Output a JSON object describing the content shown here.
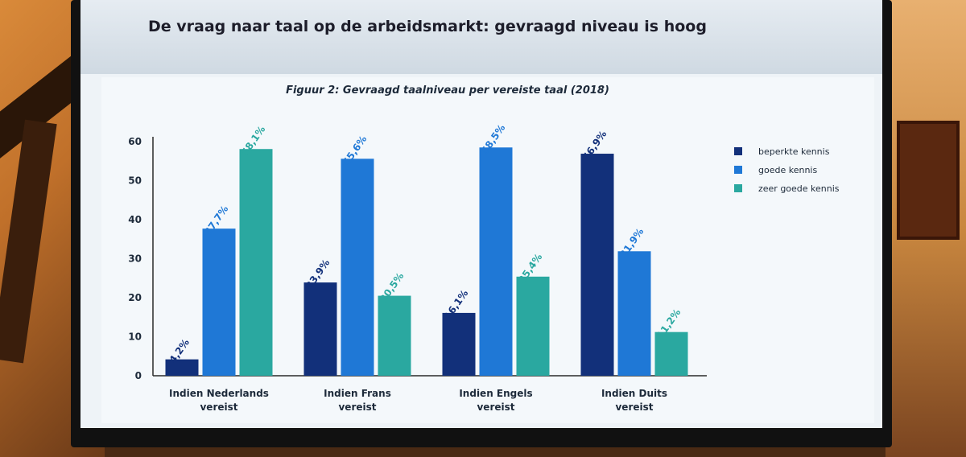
{
  "slide": {
    "title": "De vraag naar taal op de arbeidsmarkt: gevraagd niveau is hoog"
  },
  "colors": {
    "beperkte": "#12307a",
    "goede": "#1f78d6",
    "zeer_goede": "#2aa8a0"
  },
  "chart_data": {
    "type": "bar",
    "title": "Figuur 2: Gevraagd taalniveau per vereiste taal (2018)",
    "categories": [
      [
        "Indien Nederlands",
        "vereist"
      ],
      [
        "Indien Frans",
        "vereist"
      ],
      [
        "Indien Engels",
        "vereist"
      ],
      [
        "Indien Duits",
        "vereist"
      ]
    ],
    "series": [
      {
        "name": "beperkte kennis",
        "values": [
          4.2,
          23.9,
          16.1,
          56.9
        ],
        "labels": [
          "4,2%",
          "23,9%",
          "16,1%",
          "56,9%"
        ]
      },
      {
        "name": "goede kennis",
        "values": [
          37.7,
          55.6,
          58.5,
          31.9
        ],
        "labels": [
          "37,7%",
          "55,6%",
          "58,5%",
          "31,9%"
        ]
      },
      {
        "name": "zeer goede kennis",
        "values": [
          58.1,
          20.5,
          25.4,
          11.2
        ],
        "labels": [
          "58,1%",
          "20,5%",
          "25,4%",
          "11,2%"
        ]
      }
    ],
    "yticks": [
      0,
      10,
      20,
      30,
      40,
      50,
      60
    ],
    "ylim": [
      0,
      60
    ],
    "legend_position": "right",
    "grid": false
  }
}
